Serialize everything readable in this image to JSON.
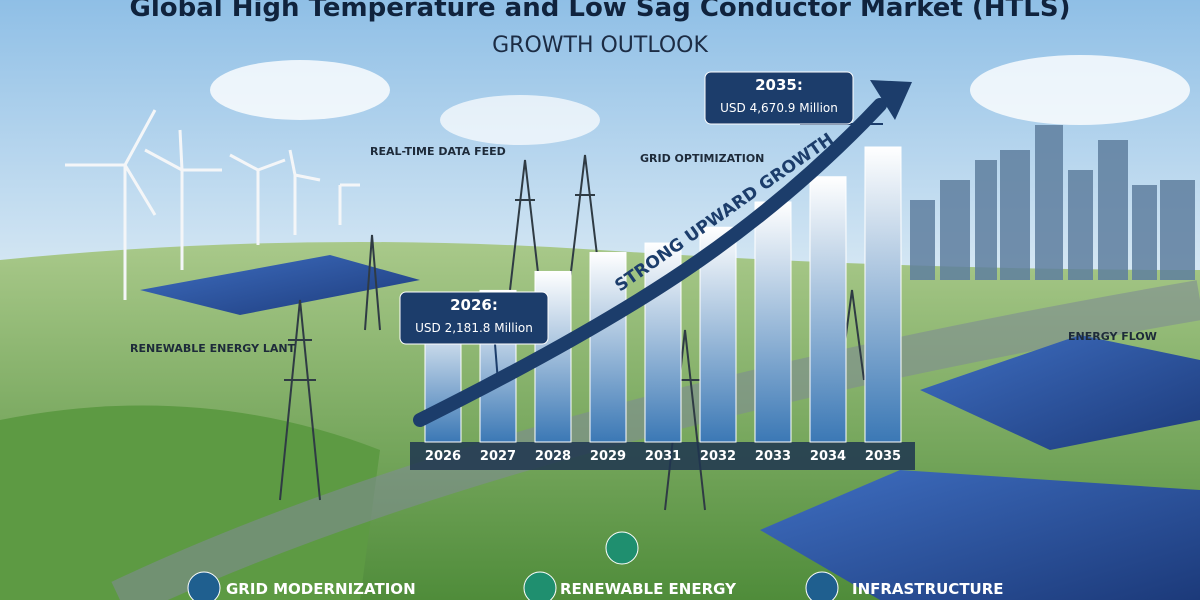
{
  "chart_data": {
    "type": "bar",
    "title": "Global High Temperature and Low Sag Conductor Market (HTLS)",
    "subtitle": "GROWTH OUTLOOK",
    "trend_label": "STRONG UPWARD GROWTH",
    "categories": [
      "2026",
      "2027",
      "2028",
      "2029",
      "2031",
      "2032",
      "2033",
      "2034",
      "2035"
    ],
    "values": [
      2181.8,
      2400,
      2700,
      3000,
      3150,
      3400,
      3800,
      4200,
      4670.9
    ],
    "value_labels": [
      "USD 2,181.8 Million",
      null,
      null,
      null,
      null,
      null,
      null,
      null,
      "USD 4,670.9 Million"
    ],
    "callout_titles": [
      "2026:",
      null,
      null,
      null,
      null,
      null,
      null,
      null,
      "2035:"
    ],
    "color": "#3b78b5",
    "annotations": [
      "REAL-TIME DATA FEED",
      "GRID OPTIMIZATION",
      "RENEWABLE ENERGY LANT",
      "ENERGY FLOW"
    ],
    "footer_items": [
      "GRID MODERNIZATION",
      "RENEWABLE ENERGY",
      "INFRASTRUCTURE"
    ]
  }
}
